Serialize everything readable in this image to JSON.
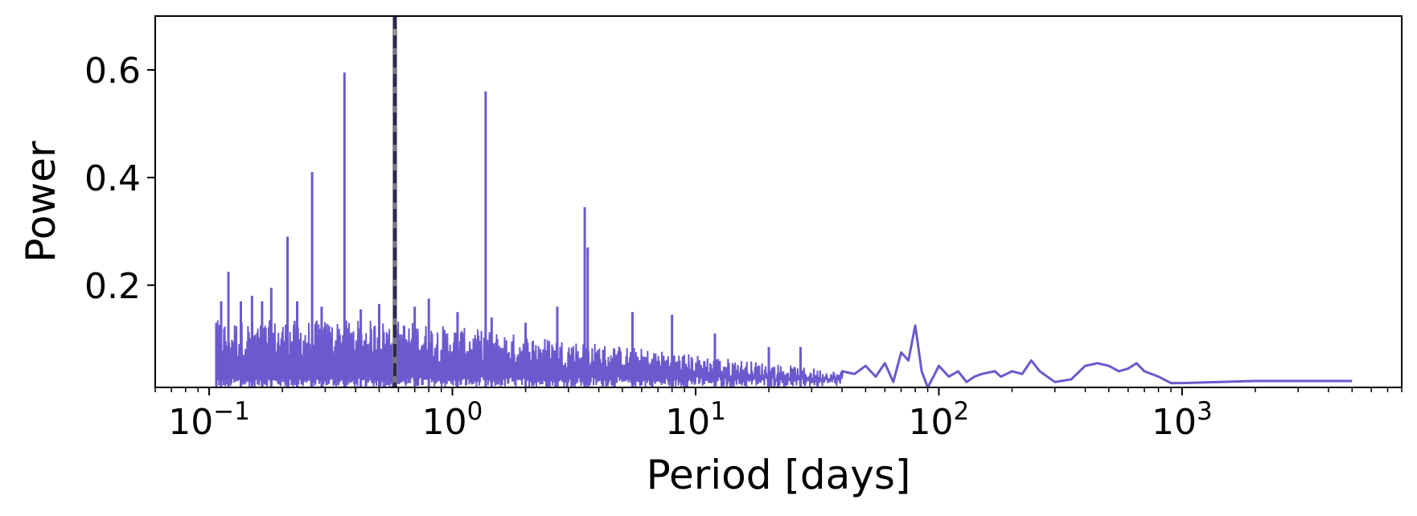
{
  "chart_data": {
    "type": "line",
    "xlabel": "Period [days]",
    "ylabel": "Power",
    "x_scale": "log",
    "xlim": [
      0.06,
      8000
    ],
    "ylim": [
      0.01,
      0.7
    ],
    "x_ticks": [
      {
        "value": 0.1,
        "base": "10",
        "exp": "−1"
      },
      {
        "value": 1,
        "base": "10",
        "exp": "0"
      },
      {
        "value": 10,
        "base": "10",
        "exp": "1"
      },
      {
        "value": 100,
        "base": "10",
        "exp": "2"
      },
      {
        "value": 1000,
        "base": "10",
        "exp": "3"
      }
    ],
    "y_ticks": [
      {
        "value": 0.2,
        "label": "0.2"
      },
      {
        "value": 0.4,
        "label": "0.4"
      },
      {
        "value": 0.6,
        "label": "0.6"
      }
    ],
    "grid": false,
    "colors": {
      "series": "#6a5acd",
      "marker_line": "#2d2750",
      "marker_top": "#777777",
      "axes": "#000000"
    },
    "marker_line": {
      "x": 0.58,
      "style": "dashed"
    },
    "series": [
      {
        "peaks": [
          {
            "x": 0.107,
            "y": 0.13
          },
          {
            "x": 0.112,
            "y": 0.17
          },
          {
            "x": 0.12,
            "y": 0.225
          },
          {
            "x": 0.135,
            "y": 0.17
          },
          {
            "x": 0.15,
            "y": 0.18
          },
          {
            "x": 0.165,
            "y": 0.17
          },
          {
            "x": 0.18,
            "y": 0.195
          },
          {
            "x": 0.21,
            "y": 0.29
          },
          {
            "x": 0.23,
            "y": 0.17
          },
          {
            "x": 0.265,
            "y": 0.41
          },
          {
            "x": 0.29,
            "y": 0.16
          },
          {
            "x": 0.36,
            "y": 0.595
          },
          {
            "x": 0.42,
            "y": 0.155
          },
          {
            "x": 0.5,
            "y": 0.165
          },
          {
            "x": 0.58,
            "y": 0.66
          },
          {
            "x": 0.7,
            "y": 0.16
          },
          {
            "x": 0.8,
            "y": 0.175
          },
          {
            "x": 1.05,
            "y": 0.15
          },
          {
            "x": 1.37,
            "y": 0.56
          },
          {
            "x": 1.45,
            "y": 0.14
          },
          {
            "x": 2.0,
            "y": 0.13
          },
          {
            "x": 2.7,
            "y": 0.16
          },
          {
            "x": 3.5,
            "y": 0.345
          },
          {
            "x": 3.6,
            "y": 0.27
          },
          {
            "x": 5.5,
            "y": 0.15
          },
          {
            "x": 8.0,
            "y": 0.145
          },
          {
            "x": 12.0,
            "y": 0.11
          },
          {
            "x": 20.0,
            "y": 0.085
          },
          {
            "x": 27.0,
            "y": 0.085
          }
        ],
        "smooth_x": [
          40,
          45,
          50,
          55,
          60,
          65,
          70,
          75,
          80,
          85,
          90,
          95,
          100,
          110,
          120,
          130,
          140,
          150,
          170,
          180,
          200,
          220,
          240,
          260,
          300,
          350,
          400,
          450,
          500,
          550,
          600,
          650,
          700,
          800,
          900,
          1000,
          2000,
          5000
        ],
        "smooth_y": [
          0.04,
          0.035,
          0.05,
          0.03,
          0.055,
          0.02,
          0.075,
          0.06,
          0.125,
          0.04,
          0.01,
          0.03,
          0.05,
          0.03,
          0.04,
          0.02,
          0.03,
          0.035,
          0.04,
          0.03,
          0.04,
          0.035,
          0.06,
          0.04,
          0.02,
          0.025,
          0.05,
          0.055,
          0.05,
          0.04,
          0.045,
          0.055,
          0.04,
          0.03,
          0.018,
          0.018,
          0.022,
          0.022
        ]
      }
    ]
  }
}
